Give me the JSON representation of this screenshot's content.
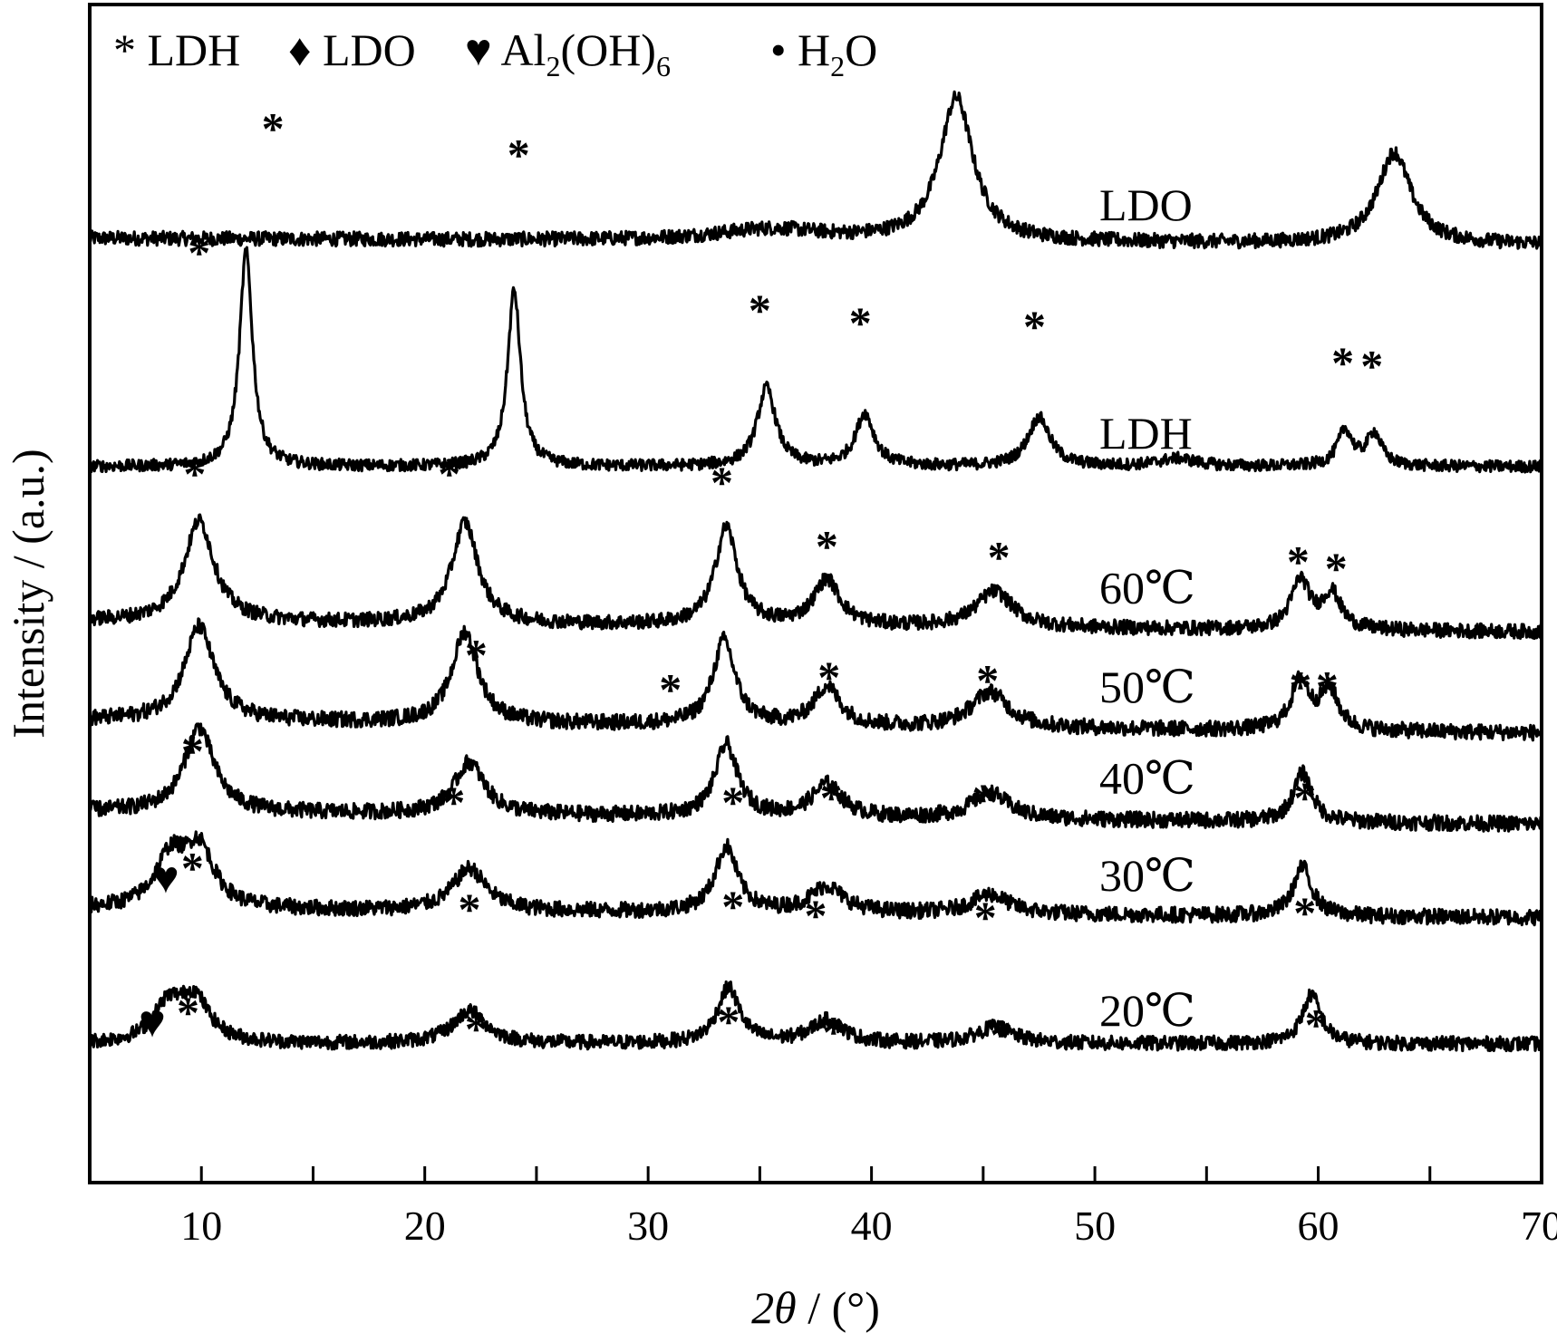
{
  "chart_data": {
    "type": "line",
    "xlabel": "2θ / (°)",
    "xlabel_parts": {
      "var": "2θ",
      "unit": " / (°)"
    },
    "ylabel": "Intensity / (a.u.)",
    "xlim": [
      5,
      70
    ],
    "y_ticks_shown": false,
    "x_ticks": [
      10,
      20,
      30,
      40,
      50,
      60,
      70
    ],
    "grid": false,
    "legend": {
      "position": "top-left",
      "entries": [
        {
          "symbol": "*",
          "label": "LDH"
        },
        {
          "symbol": "♦",
          "label": "LDO"
        },
        {
          "symbol": "♥",
          "label": "Al",
          "sub": "2",
          "label_after": "(OH)",
          "sub2": "6"
        },
        {
          "symbol": "•",
          "label": "H",
          "sub": "2",
          "label_after": "O"
        }
      ]
    },
    "series": [
      {
        "name": "LDO",
        "baseline": 1.0,
        "slope": -0.0015,
        "noise": 0.11,
        "peaks": [
          {
            "x": 35.5,
            "height": 0.18,
            "width": 3.0
          },
          {
            "x": 43.8,
            "height": 2.2,
            "width": 0.9
          },
          {
            "x": 63.4,
            "height": 1.4,
            "width": 0.9
          }
        ],
        "markers": [
          {
            "symbol": "*",
            "x": 44.9,
            "y": 9.35
          },
          {
            "symbol": "♦",
            "x": 45.0,
            "y": 9.35
          },
          {
            "symbol": "♦",
            "x": 64.5,
            "y": 8.9
          }
        ]
      },
      {
        "name": "LDH",
        "baseline": 0.0,
        "slope": 0.0,
        "noise": 0.09,
        "peaks": [
          {
            "x": 12.0,
            "height": 3.3,
            "width": 0.35
          },
          {
            "x": 24.0,
            "height": 2.7,
            "width": 0.35
          },
          {
            "x": 35.3,
            "height": 1.2,
            "width": 0.5
          },
          {
            "x": 39.7,
            "height": 0.8,
            "width": 0.5
          },
          {
            "x": 47.5,
            "height": 0.75,
            "width": 0.6
          },
          {
            "x": 53.7,
            "height": 0.12,
            "width": 1.0
          },
          {
            "x": 61.2,
            "height": 0.55,
            "width": 0.4
          },
          {
            "x": 62.5,
            "height": 0.5,
            "width": 0.4
          }
        ],
        "markers": [
          {
            "symbol": "*",
            "x": 9.9,
            "y": 3.05
          },
          {
            "symbol": "*",
            "x": 13.2,
            "y": 4.95
          },
          {
            "symbol": "*",
            "x": 24.2,
            "y": 4.55
          },
          {
            "symbol": "*",
            "x": 35.0,
            "y": 2.17
          },
          {
            "symbol": "*",
            "x": 39.5,
            "y": 1.97
          },
          {
            "symbol": "*",
            "x": 47.3,
            "y": 1.92
          },
          {
            "symbol": "*",
            "x": 61.1,
            "y": 1.36
          },
          {
            "symbol": "*",
            "x": 62.4,
            "y": 1.31
          }
        ]
      },
      {
        "name": "60℃",
        "baseline": 0.2,
        "slope": -0.0025,
        "noise": 0.11,
        "peaks": [
          {
            "x": 9.9,
            "height": 1.55,
            "width": 0.8
          },
          {
            "x": 21.8,
            "height": 1.55,
            "width": 0.7
          },
          {
            "x": 33.5,
            "height": 1.5,
            "width": 0.6
          },
          {
            "x": 38.0,
            "height": 0.7,
            "width": 0.7
          },
          {
            "x": 45.5,
            "height": 0.55,
            "width": 1.0
          },
          {
            "x": 59.2,
            "height": 0.75,
            "width": 0.5
          },
          {
            "x": 60.6,
            "height": 0.55,
            "width": 0.5
          }
        ],
        "markers": [
          {
            "symbol": "*",
            "x": 9.7,
            "y": 2.23
          },
          {
            "symbol": "*",
            "x": 21.1,
            "y": 2.23
          },
          {
            "symbol": "*",
            "x": 33.3,
            "y": 2.1
          },
          {
            "symbol": "*",
            "x": 38.0,
            "y": 1.12
          },
          {
            "symbol": "*",
            "x": 45.7,
            "y": 0.95
          },
          {
            "symbol": "*",
            "x": 59.1,
            "y": 0.88
          },
          {
            "symbol": "*",
            "x": 60.8,
            "y": 0.78
          }
        ]
      },
      {
        "name": "50℃",
        "baseline": 0.35,
        "slope": -0.003,
        "noise": 0.12,
        "peaks": [
          {
            "x": 9.9,
            "height": 1.45,
            "width": 0.8
          },
          {
            "x": 21.8,
            "height": 1.4,
            "width": 0.7
          },
          {
            "x": 33.4,
            "height": 1.3,
            "width": 0.6
          },
          {
            "x": 38.0,
            "height": 0.6,
            "width": 0.7
          },
          {
            "x": 45.3,
            "height": 0.55,
            "width": 1.0
          },
          {
            "x": 59.2,
            "height": 0.75,
            "width": 0.5
          },
          {
            "x": 60.5,
            "height": 0.6,
            "width": 0.5
          }
        ],
        "markers": [
          {
            "symbol": "*",
            "x": 22.3,
            "y": 1.12
          },
          {
            "symbol": "*",
            "x": 31.0,
            "y": 0.59
          },
          {
            "symbol": "*",
            "x": 38.1,
            "y": 0.78
          },
          {
            "symbol": "*",
            "x": 45.2,
            "y": 0.73
          },
          {
            "symbol": "*",
            "x": 59.2,
            "y": 0.63
          },
          {
            "symbol": "*",
            "x": 60.4,
            "y": 0.63
          }
        ]
      },
      {
        "name": "40℃",
        "baseline": 0.55,
        "slope": -0.003,
        "noise": 0.12,
        "peaks": [
          {
            "x": 9.9,
            "height": 1.3,
            "width": 0.8
          },
          {
            "x": 22.0,
            "height": 0.8,
            "width": 0.8
          },
          {
            "x": 33.5,
            "height": 1.1,
            "width": 0.6
          },
          {
            "x": 38.0,
            "height": 0.5,
            "width": 0.8
          },
          {
            "x": 45.3,
            "height": 0.4,
            "width": 1.0
          },
          {
            "x": 59.3,
            "height": 0.75,
            "width": 0.5
          }
        ],
        "markers": [
          {
            "symbol": "*",
            "x": 9.6,
            "y": 1.24
          },
          {
            "symbol": "*",
            "x": 21.3,
            "y": 0.46
          },
          {
            "symbol": "*",
            "x": 33.8,
            "y": 0.46
          },
          {
            "symbol": "*",
            "x": 38.2,
            "y": 0.53
          },
          {
            "symbol": "*",
            "x": 45.0,
            "y": 0.5
          },
          {
            "symbol": "*",
            "x": 59.4,
            "y": 0.53
          }
        ]
      },
      {
        "name": "30℃",
        "baseline": 0.65,
        "slope": -0.002,
        "noise": 0.12,
        "peaks": [
          {
            "x": 8.6,
            "height": 0.75,
            "width": 0.8
          },
          {
            "x": 9.9,
            "height": 0.9,
            "width": 0.8
          },
          {
            "x": 22.0,
            "height": 0.65,
            "width": 0.9
          },
          {
            "x": 33.5,
            "height": 1.0,
            "width": 0.6
          },
          {
            "x": 38.0,
            "height": 0.4,
            "width": 0.9
          },
          {
            "x": 45.3,
            "height": 0.3,
            "width": 1.0
          },
          {
            "x": 59.3,
            "height": 0.75,
            "width": 0.5
          }
        ],
        "markers": [
          {
            "symbol": "♥",
            "x": 8.4,
            "y": 0.9
          },
          {
            "symbol": "*",
            "x": 9.6,
            "y": 1.05
          },
          {
            "symbol": "*",
            "x": 22.0,
            "y": 0.42
          },
          {
            "symbol": "*",
            "x": 33.8,
            "y": 0.46
          },
          {
            "symbol": "*",
            "x": 37.5,
            "y": 0.32
          },
          {
            "symbol": "*",
            "x": 45.1,
            "y": 0.29
          },
          {
            "symbol": "*",
            "x": 59.4,
            "y": 0.36
          }
        ]
      },
      {
        "name": "20℃",
        "baseline": 0.25,
        "slope": 0.0,
        "noise": 0.11,
        "peaks": [
          {
            "x": 8.5,
            "height": 0.55,
            "width": 0.8
          },
          {
            "x": 9.7,
            "height": 0.65,
            "width": 0.8
          },
          {
            "x": 22.0,
            "height": 0.5,
            "width": 0.9
          },
          {
            "x": 33.6,
            "height": 0.85,
            "width": 0.6
          },
          {
            "x": 38.0,
            "height": 0.35,
            "width": 0.9
          },
          {
            "x": 45.5,
            "height": 0.25,
            "width": 1.0
          },
          {
            "x": 59.7,
            "height": 0.75,
            "width": 0.5
          }
        ],
        "markers": [
          {
            "symbol": "♥",
            "x": 7.8,
            "y": 0.36
          },
          {
            "symbol": "*",
            "x": 9.4,
            "y": 0.5
          },
          {
            "symbol": "*",
            "x": 22.3,
            "y": 0.25
          },
          {
            "symbol": "*",
            "x": 33.6,
            "y": 0.36
          },
          {
            "symbol": "*",
            "x": 38.3,
            "y": 0.2
          },
          {
            "symbol": "*",
            "x": 45.8,
            "y": 0.16
          },
          {
            "symbol": "*",
            "x": 59.9,
            "y": 0.31
          }
        ]
      }
    ]
  }
}
